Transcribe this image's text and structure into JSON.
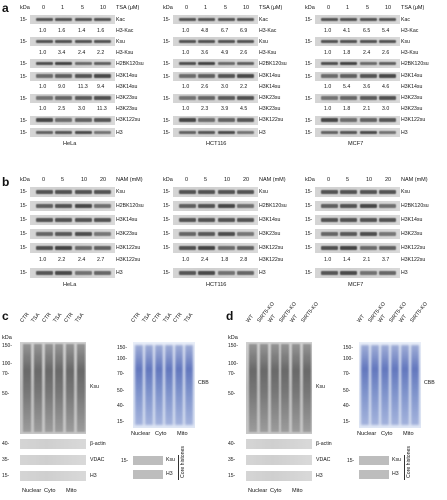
{
  "panels": {
    "a": "a",
    "b": "b",
    "c": "c",
    "d": "d"
  },
  "kda": "kDa",
  "marker_15": "15-",
  "a": {
    "header": {
      "concs": [
        "0",
        "1",
        "5",
        "10"
      ],
      "unit": "TSA (μM)"
    },
    "blots": {
      "hela": {
        "cell_line": "HeLa",
        "rows": [
          {
            "label": "Kac"
          },
          {
            "label": "H3-Kac",
            "values": [
              "1.0",
              "1.6",
              "1.4",
              "1.6"
            ]
          },
          {
            "label": "Ksu"
          },
          {
            "label": "H3-Ksu",
            "values": [
              "1.0",
              "3.4",
              "2.4",
              "2.2"
            ]
          },
          {
            "label": "H2BK120su"
          },
          {
            "label": "H3K14su"
          },
          {
            "label": "H3K14su",
            "values": [
              "1.0",
              "9.0",
              "11.3",
              "9.4"
            ]
          },
          {
            "label": "H3K23su"
          },
          {
            "label": "H3K23su",
            "values": [
              "1.0",
              "2.5",
              "3.0",
              "11.3"
            ]
          },
          {
            "label": "H3K122su"
          },
          {
            "label": "H3"
          }
        ]
      },
      "hct116": {
        "cell_line": "HCT116",
        "rows": [
          {
            "label": "Kac"
          },
          {
            "label": "H3-Kac",
            "values": [
              "1.0",
              "4.8",
              "6.7",
              "6.9"
            ]
          },
          {
            "label": "Ksu"
          },
          {
            "label": "H3-Ksu",
            "values": [
              "1.0",
              "3.6",
              "4.9",
              "2.6"
            ]
          },
          {
            "label": "H2BK120su"
          },
          {
            "label": "H3K14su"
          },
          {
            "label": "H3K14su",
            "values": [
              "1.0",
              "2.6",
              "3.0",
              "2.2"
            ]
          },
          {
            "label": "H3K23su"
          },
          {
            "label": "H3K23su",
            "values": [
              "1.0",
              "2.3",
              "3.9",
              "4.5"
            ]
          },
          {
            "label": "H3K122su"
          },
          {
            "label": "H3"
          }
        ]
      },
      "mcf7": {
        "cell_line": "MCF7",
        "rows": [
          {
            "label": "Kac"
          },
          {
            "label": "H3-Kac",
            "values": [
              "1.0",
              "4.1",
              "6.5",
              "5.4"
            ]
          },
          {
            "label": "Ksu"
          },
          {
            "label": "H3-Ksu",
            "values": [
              "1.0",
              "1.8",
              "2.4",
              "2.6"
            ]
          },
          {
            "label": "H2BK120su"
          },
          {
            "label": "H3K14su"
          },
          {
            "label": "H3K14su",
            "values": [
              "1.0",
              "5.4",
              "3.6",
              "4.6"
            ]
          },
          {
            "label": "H3K23su"
          },
          {
            "label": "H3K23su",
            "values": [
              "1.0",
              "1.8",
              "2.1",
              "3.0"
            ]
          },
          {
            "label": "H3K122su"
          },
          {
            "label": "H3"
          }
        ]
      }
    }
  },
  "b": {
    "header": {
      "concs": [
        "0",
        "5",
        "10",
        "20"
      ],
      "unit": "NAM (mM)"
    },
    "blots": {
      "hela": {
        "cell_line": "HeLa",
        "rows": [
          {
            "label": "Ksu"
          },
          {
            "label": "H2BK120su"
          },
          {
            "label": "H3K14su"
          },
          {
            "label": "H3K23su"
          },
          {
            "label": "H3K122su"
          },
          {
            "label": "H3K122su",
            "values": [
              "1.0",
              "2.2",
              "2.4",
              "2.7"
            ]
          },
          {
            "label": "H3"
          }
        ]
      },
      "hct116": {
        "cell_line": "HCT116",
        "rows": [
          {
            "label": "Ksu"
          },
          {
            "label": "H2BK120su"
          },
          {
            "label": "H3K14su"
          },
          {
            "label": "H3K23su"
          },
          {
            "label": "H3K122su"
          },
          {
            "label": "H3K122su",
            "values": [
              "1.0",
              "2.4",
              "1.8",
              "2.8"
            ]
          },
          {
            "label": "H3"
          }
        ]
      },
      "mcf7": {
        "cell_line": "MCF7",
        "rows": [
          {
            "label": "Ksu"
          },
          {
            "label": "H2BK120su"
          },
          {
            "label": "H3K14su"
          },
          {
            "label": "H3K23su"
          },
          {
            "label": "H3K122su"
          },
          {
            "label": "H3K122su",
            "values": [
              "1.0",
              "1.4",
              "2.1",
              "3.7"
            ]
          },
          {
            "label": "H3"
          }
        ]
      }
    }
  },
  "c": {
    "lanes": [
      "CTR",
      "TSA",
      "CTR",
      "TSA",
      "CTR",
      "TSA"
    ],
    "markers": [
      "150-",
      "100-",
      "70-",
      "50-",
      "40-",
      "35-",
      "15-"
    ],
    "labels": {
      "ksu": "Ksu",
      "bactin": "β-actin",
      "vdac": "VDAC",
      "h3": "H3",
      "cbb": "CBB",
      "core": "Core histones"
    },
    "fractions": [
      "Nuclear",
      "Cyto",
      "Mito"
    ]
  },
  "d": {
    "lanes": [
      "WT",
      "SIRT5-KO",
      "WT",
      "SIRT5-KO",
      "WT",
      "SIRT5-KO"
    ],
    "markers": [
      "150-",
      "100-",
      "70-",
      "50-",
      "40-",
      "35-",
      "15-"
    ],
    "labels": {
      "ksu": "Ksu",
      "bactin": "β-actin",
      "vdac": "VDAC",
      "h3": "H3",
      "cbb": "CBB",
      "core": "Core histones"
    },
    "fractions": [
      "Nuclear",
      "Cyto",
      "Mito"
    ]
  }
}
